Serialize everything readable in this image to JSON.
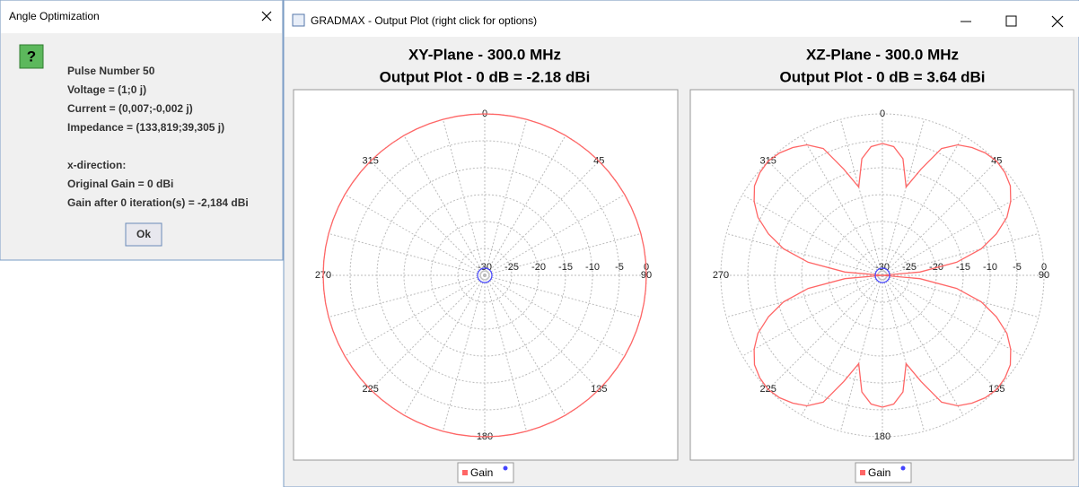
{
  "dialog": {
    "title": "Angle Optimization",
    "icon": "?",
    "lines": [
      "Pulse Number 50",
      "Voltage = (1;0 j)",
      "Current = (0,007;-0,002 j)",
      "Impedance = (133,819;39,305 j)"
    ],
    "direction_lines": [
      "x-direction:",
      "Original Gain = 0 dBi",
      "Gain after 0  iteration(s) = -2,184 dBi"
    ],
    "button": "Ok"
  },
  "window": {
    "title": "GRADMAX - Output Plot (right click for options)"
  },
  "chart_data": [
    {
      "type": "polar",
      "title": "XY-Plane - 300.0 MHz",
      "subtitle": "Output Plot - 0 dB = -2.18 dBi",
      "rlim": [
        -30,
        0
      ],
      "rticks": [
        -30,
        -25,
        -20,
        -15,
        -10,
        -5,
        0
      ],
      "thetaticks": [
        0,
        45,
        90,
        135,
        180,
        225,
        270,
        315
      ],
      "grid": true,
      "theta": [
        0,
        5,
        10,
        15,
        20,
        25,
        30,
        35,
        40,
        45,
        50,
        55,
        60,
        65,
        70,
        75,
        80,
        85,
        90,
        95,
        100,
        105,
        110,
        115,
        120,
        125,
        130,
        135,
        140,
        145,
        150,
        155,
        160,
        165,
        170,
        175,
        180,
        185,
        190,
        195,
        200,
        205,
        210,
        215,
        220,
        225,
        230,
        235,
        240,
        245,
        250,
        255,
        260,
        265,
        270,
        275,
        280,
        285,
        290,
        295,
        300,
        305,
        310,
        315,
        320,
        325,
        330,
        335,
        340,
        345,
        350,
        355
      ],
      "series": [
        {
          "name": "Gain",
          "color": "#ff6666",
          "values": [
            0,
            0,
            0,
            0,
            0,
            0,
            0,
            0,
            0,
            0,
            0,
            0,
            0,
            0,
            0,
            0,
            0,
            0,
            0,
            0,
            0,
            0,
            0,
            0,
            0,
            0,
            0,
            0,
            0,
            0,
            0,
            0,
            0,
            0,
            0,
            0,
            0,
            0,
            0,
            0,
            0,
            0,
            0,
            0,
            0,
            0,
            0,
            0,
            0,
            0,
            0,
            0,
            0,
            0,
            0,
            0,
            0,
            0,
            0,
            0,
            0,
            0,
            0,
            0,
            0,
            0,
            0,
            0,
            0,
            0,
            0,
            0
          ]
        }
      ]
    },
    {
      "type": "polar",
      "title": "XZ-Plane - 300.0 MHz",
      "subtitle": "Output Plot - 0 dB = 3.64 dBi",
      "rlim": [
        -30,
        0
      ],
      "rticks": [
        -30,
        -25,
        -20,
        -15,
        -10,
        -5,
        0
      ],
      "thetaticks": [
        0,
        45,
        90,
        135,
        180,
        225,
        270,
        315
      ],
      "grid": true,
      "theta": [
        0,
        5,
        10,
        15,
        20,
        25,
        30,
        35,
        40,
        45,
        50,
        55,
        60,
        65,
        70,
        75,
        80,
        85,
        90,
        95,
        100,
        105,
        110,
        115,
        120,
        125,
        130,
        135,
        140,
        145,
        150,
        155,
        160,
        165,
        170,
        175,
        180,
        185,
        190,
        195,
        200,
        205,
        210,
        215,
        220,
        225,
        230,
        235,
        240,
        245,
        250,
        255,
        260,
        265,
        270,
        275,
        280,
        285,
        290,
        295,
        300,
        305,
        310,
        315,
        320,
        325,
        330,
        335,
        340,
        345,
        350,
        355
      ],
      "series": [
        {
          "name": "Gain",
          "color": "#ff6666",
          "values": [
            -5.5,
            -6,
            -8,
            -13,
            -9,
            -4,
            -2,
            -1,
            -0.3,
            0,
            -0.3,
            -1,
            -2.5,
            -4.5,
            -7.5,
            -11,
            -16,
            -23,
            -30,
            -23,
            -16,
            -11,
            -7.5,
            -4.5,
            -2.5,
            -1,
            -0.3,
            0,
            -0.3,
            -1,
            -2,
            -4,
            -9,
            -13,
            -8,
            -6,
            -5.5,
            -6,
            -8,
            -13,
            -9,
            -4,
            -2,
            -1,
            -0.3,
            0,
            -0.3,
            -1,
            -2.5,
            -4.5,
            -7.5,
            -11,
            -16,
            -23,
            -30,
            -23,
            -16,
            -11,
            -7.5,
            -4.5,
            -2.5,
            -1,
            -0.3,
            0,
            -0.3,
            -1,
            -2,
            -4,
            -9,
            -13,
            -8,
            -6
          ]
        }
      ]
    }
  ]
}
